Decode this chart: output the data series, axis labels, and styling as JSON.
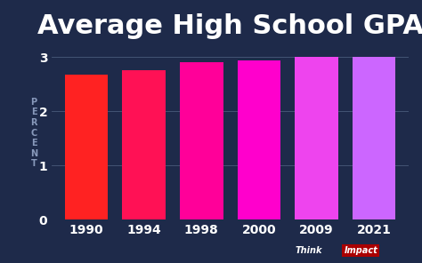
{
  "title": "Average High School GPA",
  "ylabel": "PERCENT",
  "categories": [
    "1990",
    "1994",
    "1998",
    "2000",
    "2009",
    "2021"
  ],
  "values": [
    2.68,
    2.75,
    2.9,
    2.94,
    3.0,
    3.0
  ],
  "bar_colors": [
    "#FF2222",
    "#FF1155",
    "#FF0099",
    "#FF00CC",
    "#EE44EE",
    "#CC66FF"
  ],
  "background_color": "#1E2A4A",
  "text_color": "#FFFFFF",
  "grid_color": "#4A5A7A",
  "ylabel_color": "#8899BB",
  "tick_color": "#AABBCC",
  "ylim": [
    0,
    3.2
  ],
  "yticks": [
    0,
    1,
    2,
    3
  ],
  "title_fontsize": 22,
  "ylabel_fontsize": 7,
  "tick_fontsize": 10,
  "brand_think_color": "#FFFFFF",
  "brand_impact_bg": "#AA0000"
}
